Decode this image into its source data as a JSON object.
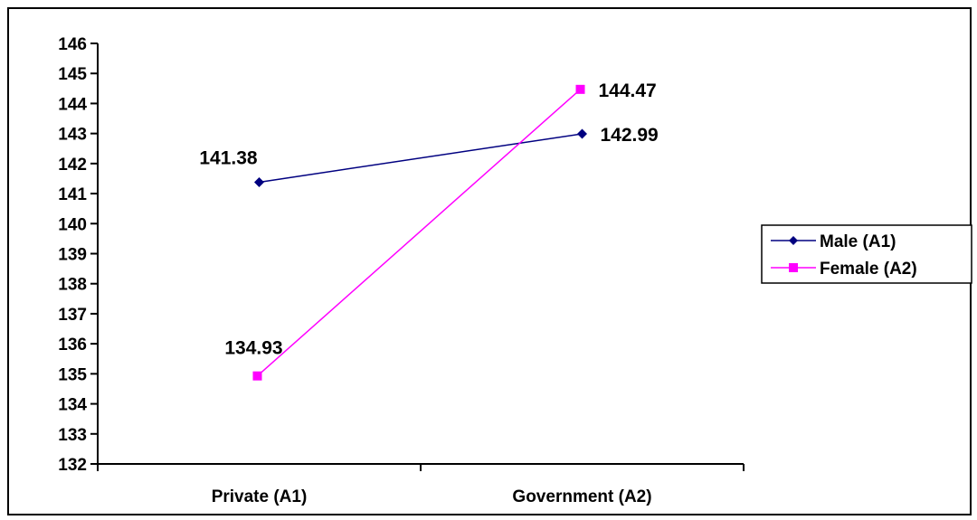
{
  "chart_data": {
    "type": "line",
    "title": "",
    "xlabel": "",
    "ylabel": "",
    "categories": [
      "Private (A1)",
      "Government (A2)"
    ],
    "ylim": [
      132,
      146
    ],
    "yticks": [
      132,
      133,
      134,
      135,
      136,
      137,
      138,
      139,
      140,
      141,
      142,
      143,
      144,
      145,
      146
    ],
    "grid": false,
    "legend_position": "right",
    "series": [
      {
        "name": "Male (A1)",
        "values": [
          141.38,
          142.99
        ],
        "labels": [
          "141.38",
          "142.99"
        ],
        "color": "#000080",
        "marker": "diamond"
      },
      {
        "name": "Female (A2)",
        "values": [
          134.93,
          144.47
        ],
        "labels": [
          "134.93",
          "144.47"
        ],
        "color": "#ff00ff",
        "marker": "square"
      }
    ]
  }
}
